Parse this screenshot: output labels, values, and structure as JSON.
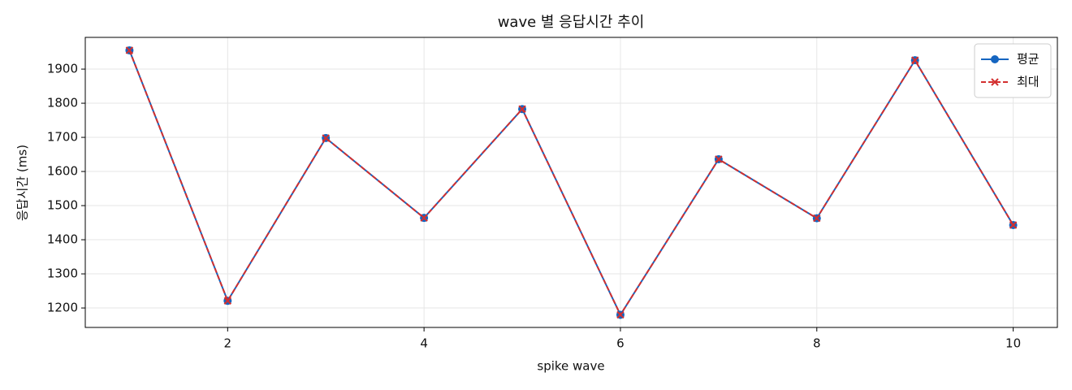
{
  "chart_data": {
    "type": "line",
    "title": "wave 별 응답시간 추이",
    "xlabel": "spike wave",
    "ylabel": "응답시간 (ms)",
    "x": [
      1,
      2,
      3,
      4,
      5,
      6,
      7,
      8,
      9,
      10
    ],
    "series": [
      {
        "name": "평균",
        "color": "#1565c0",
        "marker": "o",
        "dash": false,
        "values": [
          1955,
          1221,
          1698,
          1464,
          1783,
          1180,
          1636,
          1463,
          1926,
          1443
        ]
      },
      {
        "name": "최대",
        "color": "#d32f2f",
        "marker": "x",
        "dash": true,
        "values": [
          1955,
          1221,
          1698,
          1464,
          1783,
          1180,
          1636,
          1463,
          1926,
          1443
        ]
      }
    ],
    "xlim": [
      0.55,
      10.45
    ],
    "xticks": [
      2,
      4,
      6,
      8,
      10
    ],
    "ylim": [
      1143,
      1993
    ],
    "yticks": [
      1200,
      1300,
      1400,
      1500,
      1600,
      1700,
      1800,
      1900
    ],
    "grid": true,
    "legend": "upper right"
  }
}
